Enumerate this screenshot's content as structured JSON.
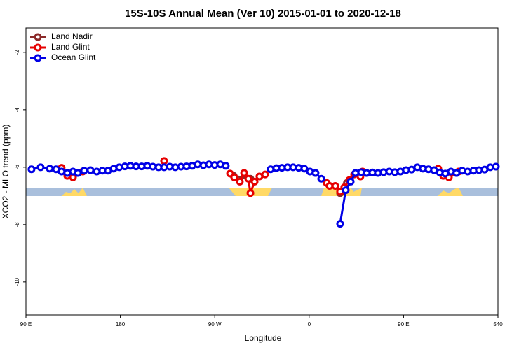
{
  "chart_data": {
    "type": "line",
    "title": "15S-10S Annual Mean (Ver 10)   2015-01-01 to 2020-12-18",
    "x_label": "Longitude",
    "y_label": "XCO2 - MLO trend (ppm)",
    "xlim": [
      90,
      540
    ],
    "xticks": [
      {
        "value": 90,
        "label": "90 E"
      },
      180,
      {
        "value": 270,
        "label": "90 W"
      },
      {
        "value": 360,
        "label": "0"
      },
      {
        "value": 450,
        "label": "90 E"
      },
      540
    ],
    "ylim": [
      -11.15,
      -1.15
    ],
    "yticks": [
      -2,
      -4,
      -6,
      -8,
      -10
    ],
    "legend": "top-left",
    "series": [
      {
        "name": "Land Nadir",
        "color": "#8b2a2a",
        "x": [
          288,
          304,
          null,
          389.5,
          396
        ],
        "values": [
          -6.3,
          -6.4,
          null,
          -6.9,
          -6.55
        ]
      },
      {
        "name": "Land Glint",
        "color": "#e60000",
        "x": [
          124,
          129.4,
          134.8,
          144.2,
          null,
          221.7,
          null,
          284.6,
          288.6,
          293.9,
          298,
          302,
          304,
          308,
          312.6,
          318,
          null,
          376.8,
          379.5,
          384.9,
          389.5,
          393.5,
          398.2,
          402.9,
          408.9,
          410.9,
          null,
          483.1,
          487.8,
          493.2,
          502.5
        ],
        "values": [
          -6.02,
          -6.3,
          -6.35,
          -6.15,
          null,
          -5.78,
          null,
          -6.22,
          -6.35,
          -6.5,
          -6.2,
          -6.4,
          -6.9,
          -6.5,
          -6.32,
          -6.25,
          null,
          -6.55,
          -6.65,
          -6.65,
          -6.85,
          -6.7,
          -6.45,
          -6.25,
          -6.32,
          -6.15,
          null,
          -6.05,
          -6.3,
          -6.35,
          -6.15
        ]
      },
      {
        "name": "Ocean Glint",
        "color": "#0000e6",
        "x": [
          95.3,
          104,
          112.7,
          118.7,
          124,
          129.4,
          134.8,
          139.5,
          145.5,
          151.5,
          157.5,
          162.9,
          168.2,
          173.6,
          178.9,
          184.3,
          189.6,
          195,
          200.3,
          205.7,
          211,
          216.4,
          221.7,
          227.1,
          232.4,
          237.8,
          243.1,
          248.5,
          253.8,
          259.2,
          264.5,
          269.9,
          275.2,
          280.5,
          null,
          323.3,
          328.7,
          334,
          339.4,
          344.7,
          350.1,
          355.4,
          360.8,
          366.1,
          371.5,
          null,
          389.5,
          394.9,
          399.6,
          404.2,
          409.6,
          414.9,
          420.3,
          425.6,
          431,
          436.3,
          441.7,
          447,
          452.4,
          457.7,
          463.1,
          468.4,
          473.8,
          479.1,
          484.5,
          489.8,
          495.2,
          500.5,
          505.9,
          511.2,
          516.6,
          521.9,
          527.3,
          532.6,
          538
        ],
        "values": [
          -6.07,
          -6.0,
          -6.05,
          -6.07,
          -6.15,
          -6.2,
          -6.15,
          -6.2,
          -6.12,
          -6.1,
          -6.15,
          -6.12,
          -6.12,
          -6.05,
          -6.0,
          -5.97,
          -5.95,
          -5.97,
          -5.97,
          -5.95,
          -5.98,
          -6.0,
          -6.0,
          -5.98,
          -6.0,
          -5.98,
          -5.97,
          -5.95,
          -5.9,
          -5.93,
          -5.9,
          -5.92,
          -5.9,
          -5.95,
          null,
          -6.07,
          -6.03,
          -6.02,
          -6.0,
          -6.0,
          -6.02,
          -6.05,
          -6.15,
          -6.2,
          -6.4,
          null,
          -7.97,
          -6.8,
          -6.5,
          -6.2,
          -6.17,
          -6.2,
          -6.18,
          -6.2,
          -6.17,
          -6.15,
          -6.17,
          -6.15,
          -6.1,
          -6.08,
          -6.0,
          -6.05,
          -6.07,
          -6.1,
          -6.18,
          -6.22,
          -6.15,
          -6.2,
          -6.12,
          -6.15,
          -6.12,
          -6.1,
          -6.08,
          -6.0,
          -5.98
        ]
      }
    ]
  }
}
